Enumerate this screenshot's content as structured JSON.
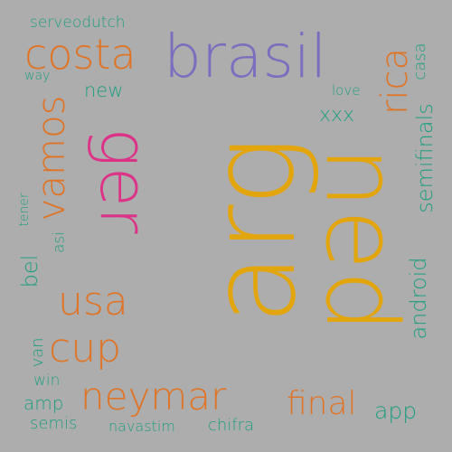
{
  "colors": {
    "background": "#adadad",
    "teal": "#1f9e80",
    "orange": "#e07426",
    "purple": "#7a6fbe",
    "pink": "#dc3288",
    "gold": "#e3a50d"
  },
  "words": {
    "serveodutch": "serveodutch",
    "costa": "costa",
    "brasil": "brasil",
    "new": "new",
    "way": "way",
    "love": "love",
    "xxx": "xxx",
    "rica": "rica",
    "casa": "casa",
    "semifinals": "semifinals",
    "vamos": "vamos",
    "ger": "ger",
    "arg": "arg",
    "ned": "ned",
    "tener": "tener",
    "asi": "asi",
    "bel": "bel",
    "usa": "usa",
    "android": "android",
    "cup": "cup",
    "van": "van",
    "win": "win",
    "amp": "amp",
    "neymar": "neymar",
    "final": "final",
    "app": "app",
    "semis": "semis",
    "navastim": "navastim",
    "chifra": "chifra"
  }
}
